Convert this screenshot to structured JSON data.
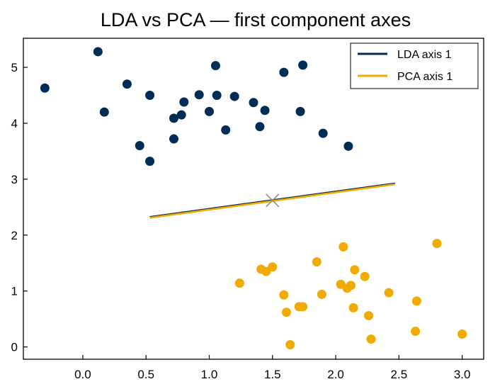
{
  "chart_data": {
    "type": "scatter",
    "title": "LDA vs PCA — first component axes",
    "xlabel": "",
    "ylabel": "",
    "xlim": [
      -0.47,
      3.17
    ],
    "ylim": [
      -0.22,
      5.52
    ],
    "xticks": [
      "0.0",
      "0.5",
      "1.0",
      "1.5",
      "2.0",
      "2.5",
      "3.0"
    ],
    "yticks": [
      "0",
      "1",
      "2",
      "3",
      "4",
      "5"
    ],
    "grid": false,
    "legend_position": "top-right",
    "legend": [
      "LDA axis 1",
      "PCA axis 1"
    ],
    "colors": {
      "class0": "#002c55",
      "class1": "#f0aa00",
      "lda": "#002c55",
      "pca": "#f0aa00",
      "mean_marker": "#a08c64"
    },
    "series": [
      {
        "color": "#002c55",
        "points": [
          [
            -0.3,
            4.63
          ],
          [
            0.12,
            5.28
          ],
          [
            0.17,
            4.2
          ],
          [
            0.35,
            4.7
          ],
          [
            0.45,
            3.6
          ],
          [
            0.53,
            4.5
          ],
          [
            0.53,
            3.32
          ],
          [
            0.72,
            4.09
          ],
          [
            0.72,
            3.72
          ],
          [
            0.78,
            4.15
          ],
          [
            0.8,
            4.38
          ],
          [
            0.92,
            4.51
          ],
          [
            1.0,
            4.21
          ],
          [
            1.05,
            5.03
          ],
          [
            1.06,
            4.5
          ],
          [
            1.13,
            3.88
          ],
          [
            1.2,
            4.48
          ],
          [
            1.35,
            4.37
          ],
          [
            1.4,
            3.94
          ],
          [
            1.44,
            4.23
          ],
          [
            1.59,
            4.91
          ],
          [
            1.72,
            4.21
          ],
          [
            1.74,
            5.04
          ],
          [
            1.9,
            3.82
          ],
          [
            2.1,
            3.59
          ]
        ]
      },
      {
        "color": "#f0aa00",
        "points": [
          [
            1.24,
            1.14
          ],
          [
            1.41,
            1.39
          ],
          [
            1.45,
            1.35
          ],
          [
            1.5,
            1.43
          ],
          [
            1.59,
            0.93
          ],
          [
            1.61,
            0.62
          ],
          [
            1.64,
            0.04
          ],
          [
            1.71,
            0.72
          ],
          [
            1.74,
            0.72
          ],
          [
            1.85,
            1.52
          ],
          [
            1.89,
            0.94
          ],
          [
            2.04,
            1.12
          ],
          [
            2.06,
            1.79
          ],
          [
            2.09,
            1.05
          ],
          [
            2.12,
            1.1
          ],
          [
            2.14,
            0.7
          ],
          [
            2.15,
            1.38
          ],
          [
            2.23,
            1.26
          ],
          [
            2.26,
            0.56
          ],
          [
            2.28,
            0.14
          ],
          [
            2.42,
            0.97
          ],
          [
            2.63,
            0.28
          ],
          [
            2.64,
            0.82
          ],
          [
            2.8,
            1.85
          ],
          [
            3.0,
            0.23
          ]
        ]
      },
      {
        "name": "LDA axis 1",
        "type": "line",
        "color": "#002c55",
        "x": [
          0.53,
          2.47
        ],
        "y": [
          2.33,
          2.93
        ]
      },
      {
        "name": "PCA axis 1",
        "type": "line",
        "color": "#f0aa00",
        "x": [
          0.53,
          2.47
        ],
        "y": [
          2.31,
          2.91
        ]
      }
    ],
    "annotations": [
      {
        "marker": "x",
        "x": 1.5,
        "y": 2.62,
        "color": "#a08c64"
      }
    ]
  }
}
